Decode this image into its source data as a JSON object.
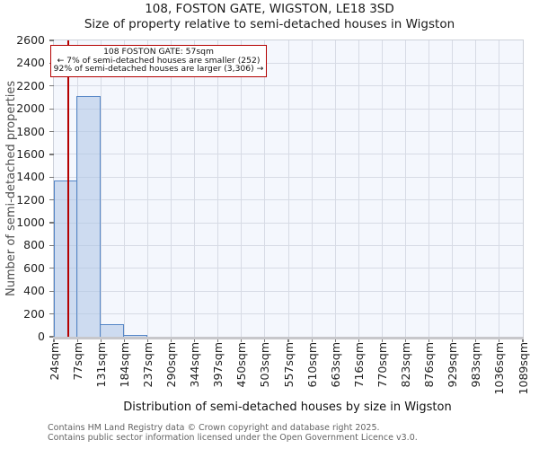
{
  "figure": {
    "title": "108, FOSTON GATE, WIGSTON, LE18 3SD",
    "subtitle": "Size of property relative to semi-detached houses in Wigston"
  },
  "annotation": {
    "line1": "108 FOSTON GATE: 57sqm",
    "line2": "← 7% of semi-detached houses are smaller (252)",
    "line3": "92% of semi-detached houses are larger (3,306) →"
  },
  "chart_data": {
    "type": "bar",
    "title": "Size of property relative to semi-detached houses in Wigston",
    "xlabel": "Distribution of semi-detached houses by size in Wigston",
    "ylabel": "Number of semi-detached properties",
    "categories": [
      "24sqm",
      "77sqm",
      "131sqm",
      "184sqm",
      "237sqm",
      "290sqm",
      "344sqm",
      "397sqm",
      "450sqm",
      "503sqm",
      "557sqm",
      "610sqm",
      "663sqm",
      "716sqm",
      "770sqm",
      "823sqm",
      "876sqm",
      "929sqm",
      "983sqm",
      "1036sqm",
      "1089sqm"
    ],
    "bin_edges_sqm": [
      24,
      77,
      131,
      184,
      237,
      290,
      344,
      397,
      450,
      503,
      557,
      610,
      663,
      716,
      770,
      823,
      876,
      929,
      983,
      1036,
      1089
    ],
    "values": [
      1370,
      2110,
      110,
      15,
      0,
      0,
      0,
      0,
      0,
      0,
      0,
      0,
      0,
      0,
      0,
      0,
      0,
      0,
      0,
      0
    ],
    "ylim": [
      0,
      2600
    ],
    "ytick_step": 200,
    "grid": true,
    "legend": null,
    "marker": {
      "label": "108 FOSTON GATE",
      "sqm": 57,
      "smaller_pct": 7,
      "smaller_count": 252,
      "larger_pct": 92,
      "larger_count": "3,306"
    }
  },
  "footer": {
    "line1": "Contains HM Land Registry data © Crown copyright and database right 2025.",
    "line2": "Contains public sector information licensed under the Open Government Licence v3.0."
  },
  "colors": {
    "bar_fill": "rgba(173,196,230,0.55)",
    "bar_edge": "#5586c6",
    "marker_line": "#b40000",
    "annotation_border": "#b40000",
    "grid": "#d7dbe5",
    "plot_bg": "#f4f7fd",
    "tick_mark": "#777777"
  }
}
